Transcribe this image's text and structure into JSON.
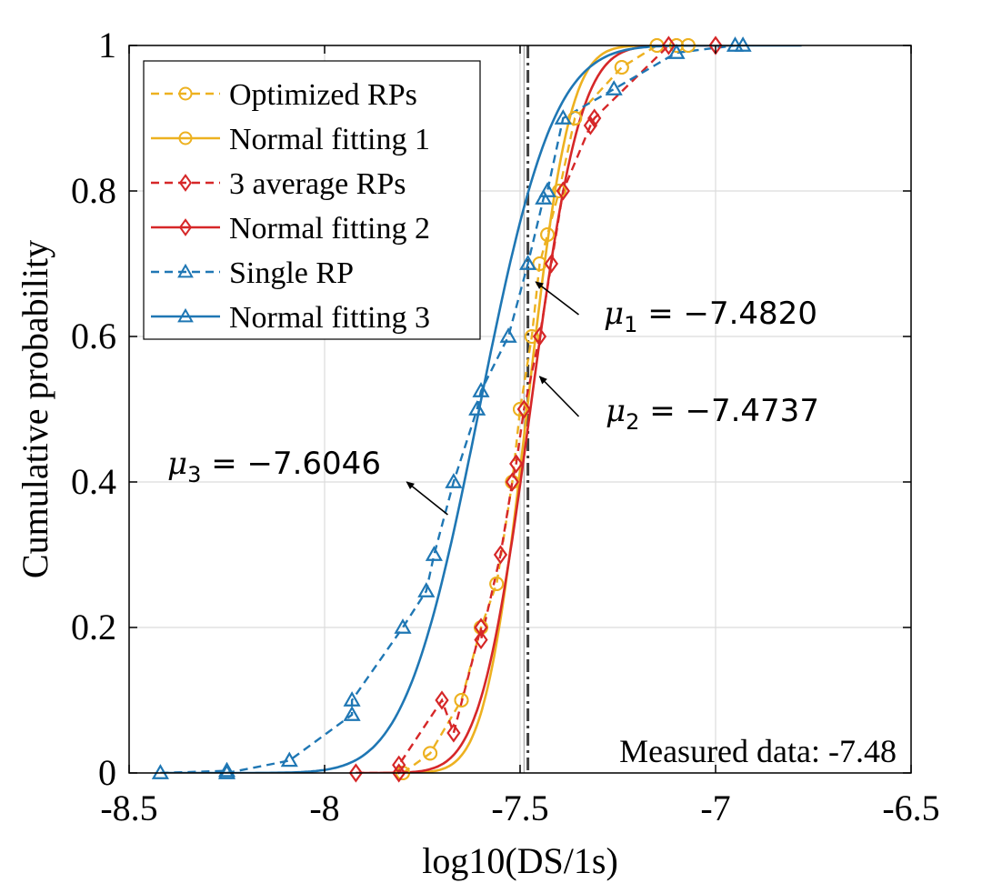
{
  "chart_data": {
    "type": "line",
    "title": "",
    "xlabel": "log10(DS/1s)",
    "ylabel": "Cumulative probability",
    "xlim": [
      -8.5,
      -6.5
    ],
    "ylim": [
      0,
      1
    ],
    "xticks": [
      -8.5,
      -8,
      -7.5,
      -7,
      -6.5
    ],
    "xtick_labels": [
      "-8.5",
      "-8",
      "-7.5",
      "-7",
      "-6.5"
    ],
    "yticks": [
      0,
      0.2,
      0.4,
      0.6,
      0.8,
      1
    ],
    "ytick_labels": [
      "0",
      "0.2",
      "0.4",
      "0.6",
      "0.8",
      "1"
    ],
    "grid": true,
    "legend_position": "top-left",
    "colors": {
      "optimized": "#EDB120",
      "average": "#D62728",
      "single": "#1F77B4",
      "measured_line": "#404040"
    },
    "series": [
      {
        "name": "Optimized RPs",
        "style": "dashed",
        "marker": "circle",
        "color_key": "optimized",
        "points": [
          [
            -7.8,
            0.0
          ],
          [
            -7.73,
            0.027
          ],
          [
            -7.65,
            0.1
          ],
          [
            -7.6,
            0.2
          ],
          [
            -7.56,
            0.26
          ],
          [
            -7.52,
            0.4
          ],
          [
            -7.5,
            0.5
          ],
          [
            -7.47,
            0.6
          ],
          [
            -7.45,
            0.7
          ],
          [
            -7.43,
            0.74
          ],
          [
            -7.4,
            0.8
          ],
          [
            -7.36,
            0.9
          ],
          [
            -7.24,
            0.97
          ],
          [
            -7.15,
            1.0
          ],
          [
            -7.1,
            1.0
          ],
          [
            -7.07,
            1.0
          ]
        ]
      },
      {
        "name": "Normal fitting 1",
        "style": "solid",
        "marker": "circle",
        "color_key": "optimized",
        "mu": -7.482,
        "sigma": 0.085,
        "x_range": [
          -7.85,
          -6.95
        ],
        "marker_points": [
          [
            -7.8,
            0.0
          ],
          [
            -7.73,
            0.027
          ],
          [
            -7.65,
            0.1
          ],
          [
            -7.6,
            0.2
          ],
          [
            -7.56,
            0.26
          ],
          [
            -7.52,
            0.4
          ],
          [
            -7.5,
            0.5
          ],
          [
            -7.47,
            0.6
          ],
          [
            -7.45,
            0.7
          ],
          [
            -7.43,
            0.74
          ],
          [
            -7.4,
            0.8
          ],
          [
            -7.36,
            0.9
          ],
          [
            -7.24,
            0.97
          ],
          [
            -7.15,
            1.0
          ],
          [
            -7.1,
            1.0
          ],
          [
            -7.07,
            1.0
          ]
        ]
      },
      {
        "name": "3 average RPs",
        "style": "dashed",
        "marker": "diamond",
        "color_key": "average",
        "points": [
          [
            -7.92,
            0.0
          ],
          [
            -7.81,
            0.0
          ],
          [
            -7.81,
            0.011
          ],
          [
            -7.7,
            0.1
          ],
          [
            -7.67,
            0.055
          ],
          [
            -7.6,
            0.2
          ],
          [
            -7.6,
            0.183
          ],
          [
            -7.55,
            0.3
          ],
          [
            -7.52,
            0.4
          ],
          [
            -7.51,
            0.425
          ],
          [
            -7.49,
            0.5
          ],
          [
            -7.45,
            0.6
          ],
          [
            -7.42,
            0.7
          ],
          [
            -7.39,
            0.8
          ],
          [
            -7.32,
            0.89
          ],
          [
            -7.31,
            0.9
          ],
          [
            -7.12,
            1.0
          ],
          [
            -7.0,
            1.0
          ]
        ]
      },
      {
        "name": "Normal fitting 2",
        "style": "solid",
        "marker": "diamond",
        "color_key": "average",
        "mu": -7.4737,
        "sigma": 0.1,
        "x_range": [
          -7.92,
          -6.95
        ],
        "marker_points": [
          [
            -7.92,
            0.0
          ],
          [
            -7.81,
            0.0
          ],
          [
            -7.81,
            0.011
          ],
          [
            -7.7,
            0.1
          ],
          [
            -7.67,
            0.055
          ],
          [
            -7.6,
            0.2
          ],
          [
            -7.6,
            0.183
          ],
          [
            -7.55,
            0.3
          ],
          [
            -7.52,
            0.4
          ],
          [
            -7.51,
            0.425
          ],
          [
            -7.49,
            0.5
          ],
          [
            -7.45,
            0.6
          ],
          [
            -7.42,
            0.7
          ],
          [
            -7.39,
            0.8
          ],
          [
            -7.32,
            0.89
          ],
          [
            -7.31,
            0.9
          ],
          [
            -7.12,
            1.0
          ],
          [
            -7.0,
            1.0
          ]
        ]
      },
      {
        "name": "Single RP",
        "style": "dashed",
        "marker": "triangle",
        "color_key": "single",
        "points": [
          [
            -8.42,
            0.0
          ],
          [
            -8.25,
            0.003
          ],
          [
            -8.25,
            0.0
          ],
          [
            -8.09,
            0.017
          ],
          [
            -7.93,
            0.08
          ],
          [
            -7.93,
            0.1
          ],
          [
            -7.8,
            0.2
          ],
          [
            -7.74,
            0.25
          ],
          [
            -7.72,
            0.3
          ],
          [
            -7.67,
            0.4
          ],
          [
            -7.61,
            0.5
          ],
          [
            -7.6,
            0.525
          ],
          [
            -7.53,
            0.6
          ],
          [
            -7.48,
            0.7
          ],
          [
            -7.44,
            0.79
          ],
          [
            -7.43,
            0.8
          ],
          [
            -7.39,
            0.9
          ],
          [
            -7.26,
            0.94
          ],
          [
            -7.1,
            0.99
          ],
          [
            -6.95,
            1.0
          ],
          [
            -6.93,
            1.0
          ]
        ]
      },
      {
        "name": "Normal fitting 3",
        "style": "solid",
        "marker": "triangle",
        "color_key": "single",
        "mu": -7.6046,
        "sigma": 0.15,
        "x_range": [
          -8.42,
          -6.78
        ],
        "marker_points": [
          [
            -8.42,
            0.0
          ],
          [
            -8.25,
            0.003
          ],
          [
            -8.25,
            0.0
          ],
          [
            -8.09,
            0.017
          ],
          [
            -7.93,
            0.08
          ],
          [
            -7.93,
            0.1
          ],
          [
            -7.8,
            0.2
          ],
          [
            -7.74,
            0.25
          ],
          [
            -7.72,
            0.3
          ],
          [
            -7.67,
            0.4
          ],
          [
            -7.61,
            0.5
          ],
          [
            -7.6,
            0.525
          ],
          [
            -7.53,
            0.6
          ],
          [
            -7.48,
            0.7
          ],
          [
            -7.44,
            0.79
          ],
          [
            -7.43,
            0.8
          ],
          [
            -7.39,
            0.9
          ],
          [
            -7.26,
            0.94
          ],
          [
            -7.1,
            0.99
          ],
          [
            -6.95,
            1.0
          ],
          [
            -6.93,
            1.0
          ]
        ]
      }
    ],
    "vertical_lines": [
      {
        "x": -7.48,
        "style": "dashdot",
        "color_key": "measured_line"
      },
      {
        "x": -7.49,
        "style": "solid-thin",
        "color_key": "measured_line"
      }
    ],
    "annotations": [
      {
        "id": "mu1",
        "symbol": "μ",
        "subscript": "1",
        "text": " = −7.4820",
        "arrow_from": [
          -7.35,
          0.63
        ],
        "arrow_to": [
          -7.46,
          0.675
        ]
      },
      {
        "id": "mu2",
        "symbol": "μ",
        "subscript": "2",
        "text": " = −7.4737",
        "arrow_from": [
          -7.35,
          0.49
        ],
        "arrow_to": [
          -7.45,
          0.545
        ]
      },
      {
        "id": "mu3",
        "symbol": "μ",
        "subscript": "3",
        "text": " = −7.6046",
        "arrow_from": [
          -7.685,
          0.355
        ],
        "arrow_to": [
          -7.79,
          0.4
        ]
      }
    ],
    "measured_label": "Measured data: -7.48"
  }
}
